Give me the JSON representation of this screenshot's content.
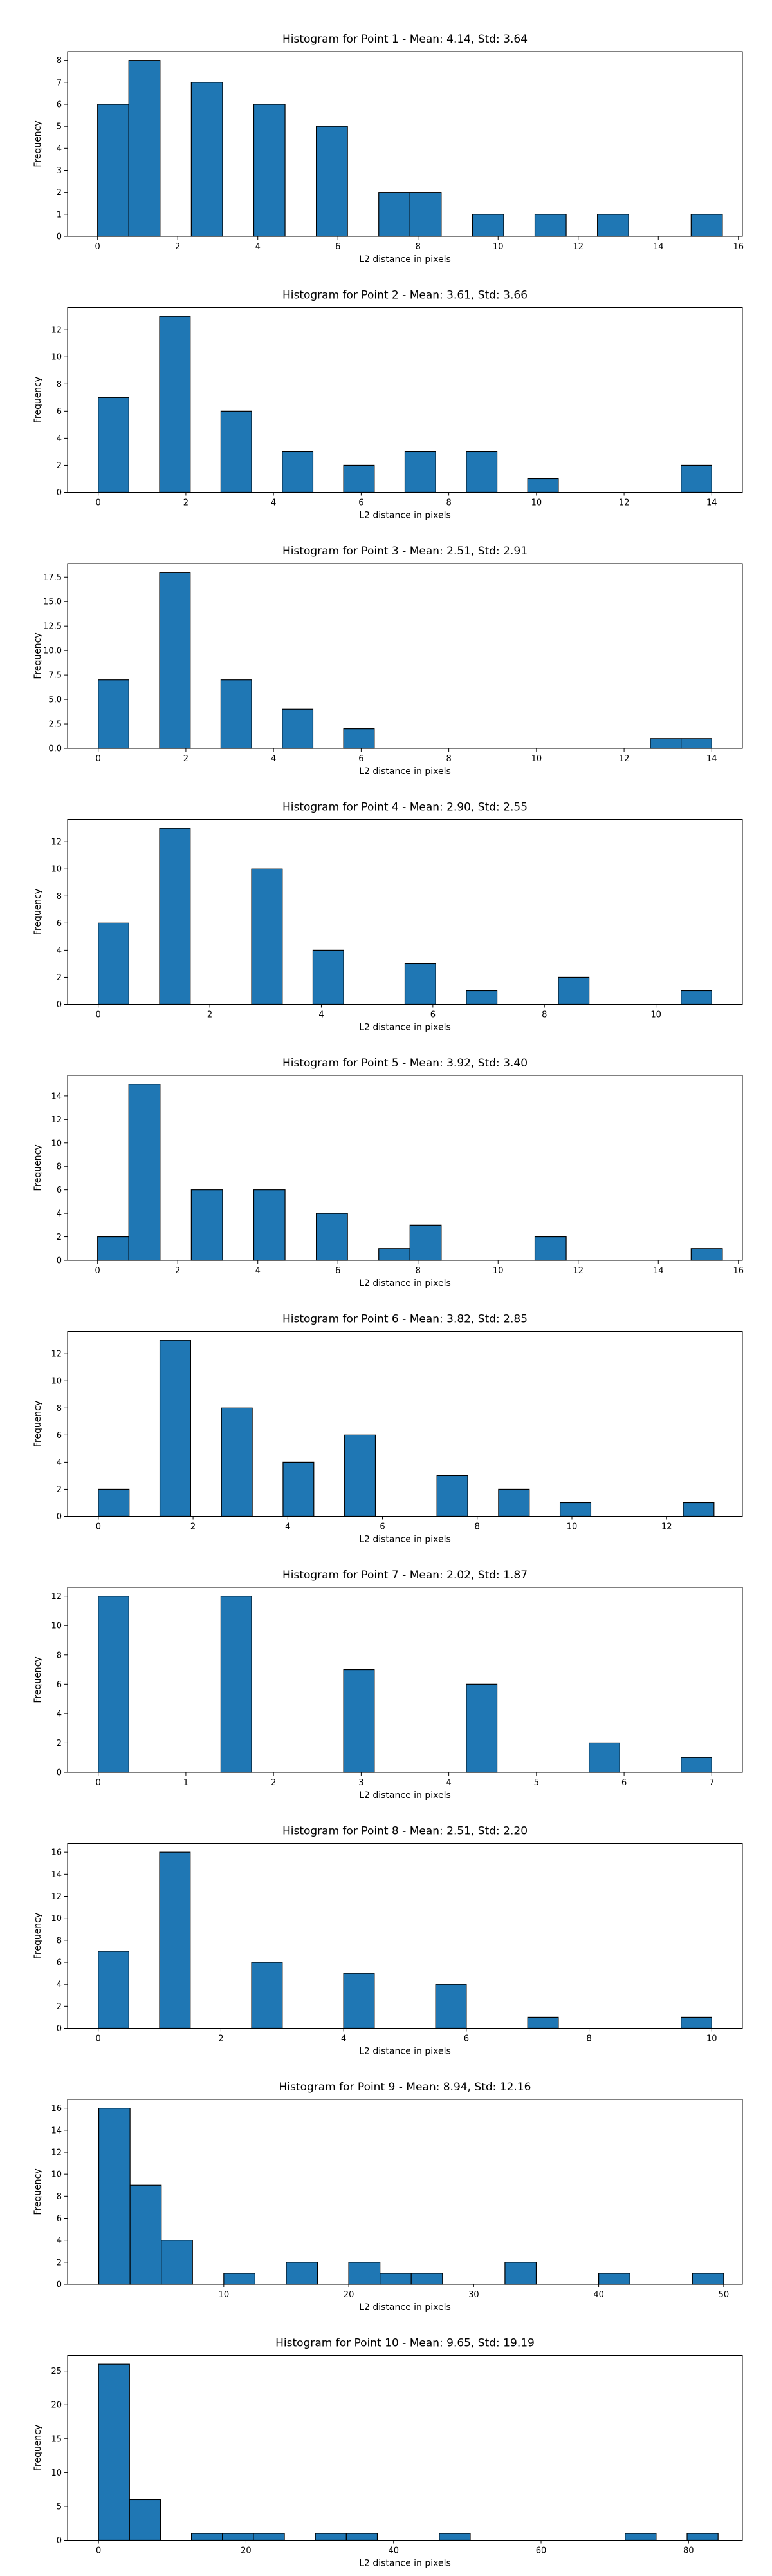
{
  "chart_data": [
    {
      "type": "bar",
      "title": "Histogram for Point 1 - Mean: 4.14, Std: 3.64",
      "xlabel": "L2 distance in pixels",
      "ylabel": "Frequency",
      "xlim": [
        -0.75,
        16.1
      ],
      "ylim": [
        0,
        8.4
      ],
      "xticks": [
        0,
        2,
        4,
        6,
        8,
        10,
        12,
        14,
        16
      ],
      "yticks": [
        0,
        1,
        2,
        3,
        4,
        5,
        6,
        7,
        8
      ],
      "bins": [
        {
          "x0": 0.0,
          "x1": 0.78,
          "count": 6
        },
        {
          "x0": 0.78,
          "x1": 1.56,
          "count": 8
        },
        {
          "x0": 2.34,
          "x1": 3.12,
          "count": 7
        },
        {
          "x0": 3.9,
          "x1": 4.68,
          "count": 6
        },
        {
          "x0": 5.46,
          "x1": 6.24,
          "count": 5
        },
        {
          "x0": 7.02,
          "x1": 7.8,
          "count": 2
        },
        {
          "x0": 7.8,
          "x1": 8.58,
          "count": 2
        },
        {
          "x0": 9.36,
          "x1": 10.14,
          "count": 1
        },
        {
          "x0": 10.92,
          "x1": 11.7,
          "count": 1
        },
        {
          "x0": 12.48,
          "x1": 13.26,
          "count": 1
        },
        {
          "x0": 14.82,
          "x1": 15.6,
          "count": 1
        }
      ]
    },
    {
      "type": "bar",
      "title": "Histogram for Point 2 - Mean: 3.61, Std: 3.66",
      "xlabel": "L2 distance in pixels",
      "ylabel": "Frequency",
      "xlim": [
        -0.7,
        14.7
      ],
      "ylim": [
        0,
        13.65
      ],
      "xticks": [
        0,
        2,
        4,
        6,
        8,
        10,
        12,
        14
      ],
      "yticks": [
        0,
        2,
        4,
        6,
        8,
        10,
        12
      ],
      "bins": [
        {
          "x0": 0.0,
          "x1": 0.7,
          "count": 7
        },
        {
          "x0": 1.4,
          "x1": 2.1,
          "count": 13
        },
        {
          "x0": 2.8,
          "x1": 3.5,
          "count": 6
        },
        {
          "x0": 4.2,
          "x1": 4.9,
          "count": 3
        },
        {
          "x0": 5.6,
          "x1": 6.3,
          "count": 2
        },
        {
          "x0": 7.0,
          "x1": 7.7,
          "count": 3
        },
        {
          "x0": 8.4,
          "x1": 9.1,
          "count": 3
        },
        {
          "x0": 9.8,
          "x1": 10.5,
          "count": 1
        },
        {
          "x0": 13.3,
          "x1": 14.0,
          "count": 2
        }
      ]
    },
    {
      "type": "bar",
      "title": "Histogram for Point 3 - Mean: 2.51, Std: 2.91",
      "xlabel": "L2 distance in pixels",
      "ylabel": "Frequency",
      "xlim": [
        -0.7,
        14.7
      ],
      "ylim": [
        0,
        18.9
      ],
      "xticks": [
        0,
        2,
        4,
        6,
        8,
        10,
        12,
        14
      ],
      "yticks": [
        0.0,
        2.5,
        5.0,
        7.5,
        10.0,
        12.5,
        15.0,
        17.5
      ],
      "ytick_labels": [
        "0.0",
        "2.5",
        "5.0",
        "7.5",
        "10.0",
        "12.5",
        "15.0",
        "17.5"
      ],
      "bins": [
        {
          "x0": 0.0,
          "x1": 0.7,
          "count": 7
        },
        {
          "x0": 1.4,
          "x1": 2.1,
          "count": 18
        },
        {
          "x0": 2.8,
          "x1": 3.5,
          "count": 7
        },
        {
          "x0": 4.2,
          "x1": 4.9,
          "count": 4
        },
        {
          "x0": 5.6,
          "x1": 6.3,
          "count": 2
        },
        {
          "x0": 12.6,
          "x1": 13.3,
          "count": 1
        },
        {
          "x0": 13.3,
          "x1": 14.0,
          "count": 1
        }
      ]
    },
    {
      "type": "bar",
      "title": "Histogram for Point 4 - Mean: 2.90, Std: 2.55",
      "xlabel": "L2 distance in pixels",
      "ylabel": "Frequency",
      "xlim": [
        -0.55,
        11.55
      ],
      "ylim": [
        0,
        13.65
      ],
      "xticks": [
        0,
        2,
        4,
        6,
        8,
        10
      ],
      "yticks": [
        0,
        2,
        4,
        6,
        8,
        10,
        12
      ],
      "bins": [
        {
          "x0": 0.0,
          "x1": 0.55,
          "count": 6
        },
        {
          "x0": 1.1,
          "x1": 1.65,
          "count": 13
        },
        {
          "x0": 2.75,
          "x1": 3.3,
          "count": 10
        },
        {
          "x0": 3.85,
          "x1": 4.4,
          "count": 4
        },
        {
          "x0": 5.5,
          "x1": 6.05,
          "count": 3
        },
        {
          "x0": 6.6,
          "x1": 7.15,
          "count": 1
        },
        {
          "x0": 8.25,
          "x1": 8.8,
          "count": 2
        },
        {
          "x0": 10.45,
          "x1": 11.0,
          "count": 1
        }
      ]
    },
    {
      "type": "bar",
      "title": "Histogram for Point 5 - Mean: 3.92, Std: 3.40",
      "xlabel": "L2 distance in pixels",
      "ylabel": "Frequency",
      "xlim": [
        -0.75,
        16.1
      ],
      "ylim": [
        0,
        15.75
      ],
      "xticks": [
        0,
        2,
        4,
        6,
        8,
        10,
        12,
        14,
        16
      ],
      "yticks": [
        0,
        2,
        4,
        6,
        8,
        10,
        12,
        14
      ],
      "bins": [
        {
          "x0": 0.0,
          "x1": 0.78,
          "count": 2
        },
        {
          "x0": 0.78,
          "x1": 1.56,
          "count": 15
        },
        {
          "x0": 2.34,
          "x1": 3.12,
          "count": 6
        },
        {
          "x0": 3.9,
          "x1": 4.68,
          "count": 6
        },
        {
          "x0": 5.46,
          "x1": 6.24,
          "count": 4
        },
        {
          "x0": 7.02,
          "x1": 7.8,
          "count": 1
        },
        {
          "x0": 7.8,
          "x1": 8.58,
          "count": 3
        },
        {
          "x0": 10.92,
          "x1": 11.7,
          "count": 2
        },
        {
          "x0": 14.82,
          "x1": 15.6,
          "count": 1
        }
      ]
    },
    {
      "type": "bar",
      "title": "Histogram for Point 6 - Mean: 3.82, Std: 2.85",
      "xlabel": "L2 distance in pixels",
      "ylabel": "Frequency",
      "xlim": [
        -0.65,
        13.6
      ],
      "ylim": [
        0,
        13.65
      ],
      "xticks": [
        0,
        2,
        4,
        6,
        8,
        10,
        12
      ],
      "yticks": [
        0,
        2,
        4,
        6,
        8,
        10,
        12
      ],
      "bins": [
        {
          "x0": 0.0,
          "x1": 0.65,
          "count": 2
        },
        {
          "x0": 1.3,
          "x1": 1.95,
          "count": 13
        },
        {
          "x0": 2.6,
          "x1": 3.25,
          "count": 8
        },
        {
          "x0": 3.9,
          "x1": 4.55,
          "count": 4
        },
        {
          "x0": 5.2,
          "x1": 5.85,
          "count": 6
        },
        {
          "x0": 7.15,
          "x1": 7.8,
          "count": 3
        },
        {
          "x0": 8.45,
          "x1": 9.1,
          "count": 2
        },
        {
          "x0": 9.75,
          "x1": 10.4,
          "count": 1
        },
        {
          "x0": 12.35,
          "x1": 13.0,
          "count": 1
        }
      ]
    },
    {
      "type": "bar",
      "title": "Histogram for Point 7 - Mean: 2.02, Std: 1.87",
      "xlabel": "L2 distance in pixels",
      "ylabel": "Frequency",
      "xlim": [
        -0.35,
        7.35
      ],
      "ylim": [
        0,
        12.6
      ],
      "xticks": [
        0,
        1,
        2,
        3,
        4,
        5,
        6,
        7
      ],
      "yticks": [
        0,
        2,
        4,
        6,
        8,
        10,
        12
      ],
      "bins": [
        {
          "x0": 0.0,
          "x1": 0.35,
          "count": 12
        },
        {
          "x0": 1.4,
          "x1": 1.75,
          "count": 12
        },
        {
          "x0": 2.8,
          "x1": 3.15,
          "count": 7
        },
        {
          "x0": 4.2,
          "x1": 4.55,
          "count": 6
        },
        {
          "x0": 5.6,
          "x1": 5.95,
          "count": 2
        },
        {
          "x0": 6.65,
          "x1": 7.0,
          "count": 1
        }
      ]
    },
    {
      "type": "bar",
      "title": "Histogram for Point 8 - Mean: 2.51, Std: 2.20",
      "xlabel": "L2 distance in pixels",
      "ylabel": "Frequency",
      "xlim": [
        -0.5,
        10.5
      ],
      "ylim": [
        0,
        16.8
      ],
      "xticks": [
        0,
        2,
        4,
        6,
        8,
        10
      ],
      "yticks": [
        0,
        2,
        4,
        6,
        8,
        10,
        12,
        14,
        16
      ],
      "bins": [
        {
          "x0": 0.0,
          "x1": 0.5,
          "count": 7
        },
        {
          "x0": 1.0,
          "x1": 1.5,
          "count": 16
        },
        {
          "x0": 2.5,
          "x1": 3.0,
          "count": 6
        },
        {
          "x0": 4.0,
          "x1": 4.5,
          "count": 5
        },
        {
          "x0": 5.5,
          "x1": 6.0,
          "count": 4
        },
        {
          "x0": 7.0,
          "x1": 7.5,
          "count": 1
        },
        {
          "x0": 9.5,
          "x1": 10.0,
          "count": 1
        }
      ]
    },
    {
      "type": "bar",
      "title": "Histogram for Point 9 - Mean: 8.94, Std: 12.16",
      "xlabel": "L2 distance in pixels",
      "ylabel": "Frequency",
      "xlim": [
        -2.5,
        51.5
      ],
      "ylim": [
        0,
        16.8
      ],
      "xticks": [
        10,
        20,
        30,
        40,
        50
      ],
      "yticks": [
        0,
        2,
        4,
        6,
        8,
        10,
        12,
        14,
        16
      ],
      "bins": [
        {
          "x0": 0.0,
          "x1": 2.5,
          "count": 16
        },
        {
          "x0": 2.5,
          "x1": 5.0,
          "count": 9
        },
        {
          "x0": 5.0,
          "x1": 7.5,
          "count": 4
        },
        {
          "x0": 10.0,
          "x1": 12.5,
          "count": 1
        },
        {
          "x0": 15.0,
          "x1": 17.5,
          "count": 2
        },
        {
          "x0": 20.0,
          "x1": 22.5,
          "count": 2
        },
        {
          "x0": 22.5,
          "x1": 25.0,
          "count": 1
        },
        {
          "x0": 25.0,
          "x1": 27.5,
          "count": 1
        },
        {
          "x0": 32.5,
          "x1": 35.0,
          "count": 2
        },
        {
          "x0": 40.0,
          "x1": 42.5,
          "count": 1
        },
        {
          "x0": 47.5,
          "x1": 50.0,
          "count": 1
        }
      ]
    },
    {
      "type": "bar",
      "title": "Histogram for Point 10 - Mean: 9.65, Std: 19.19",
      "xlabel": "L2 distance in pixels",
      "ylabel": "Frequency",
      "xlim": [
        -4.2,
        87.3
      ],
      "ylim": [
        0,
        27.3
      ],
      "xticks": [
        0,
        20,
        40,
        60,
        80
      ],
      "yticks": [
        0,
        5,
        10,
        15,
        20,
        25
      ],
      "bins": [
        {
          "x0": 0.0,
          "x1": 4.2,
          "count": 26
        },
        {
          "x0": 4.2,
          "x1": 8.4,
          "count": 6
        },
        {
          "x0": 12.6,
          "x1": 16.8,
          "count": 1
        },
        {
          "x0": 16.8,
          "x1": 21.0,
          "count": 1
        },
        {
          "x0": 21.0,
          "x1": 25.2,
          "count": 1
        },
        {
          "x0": 29.4,
          "x1": 33.6,
          "count": 1
        },
        {
          "x0": 33.6,
          "x1": 37.8,
          "count": 1
        },
        {
          "x0": 46.2,
          "x1": 50.4,
          "count": 1
        },
        {
          "x0": 71.4,
          "x1": 75.6,
          "count": 1
        },
        {
          "x0": 79.8,
          "x1": 84.0,
          "count": 1
        }
      ]
    }
  ]
}
